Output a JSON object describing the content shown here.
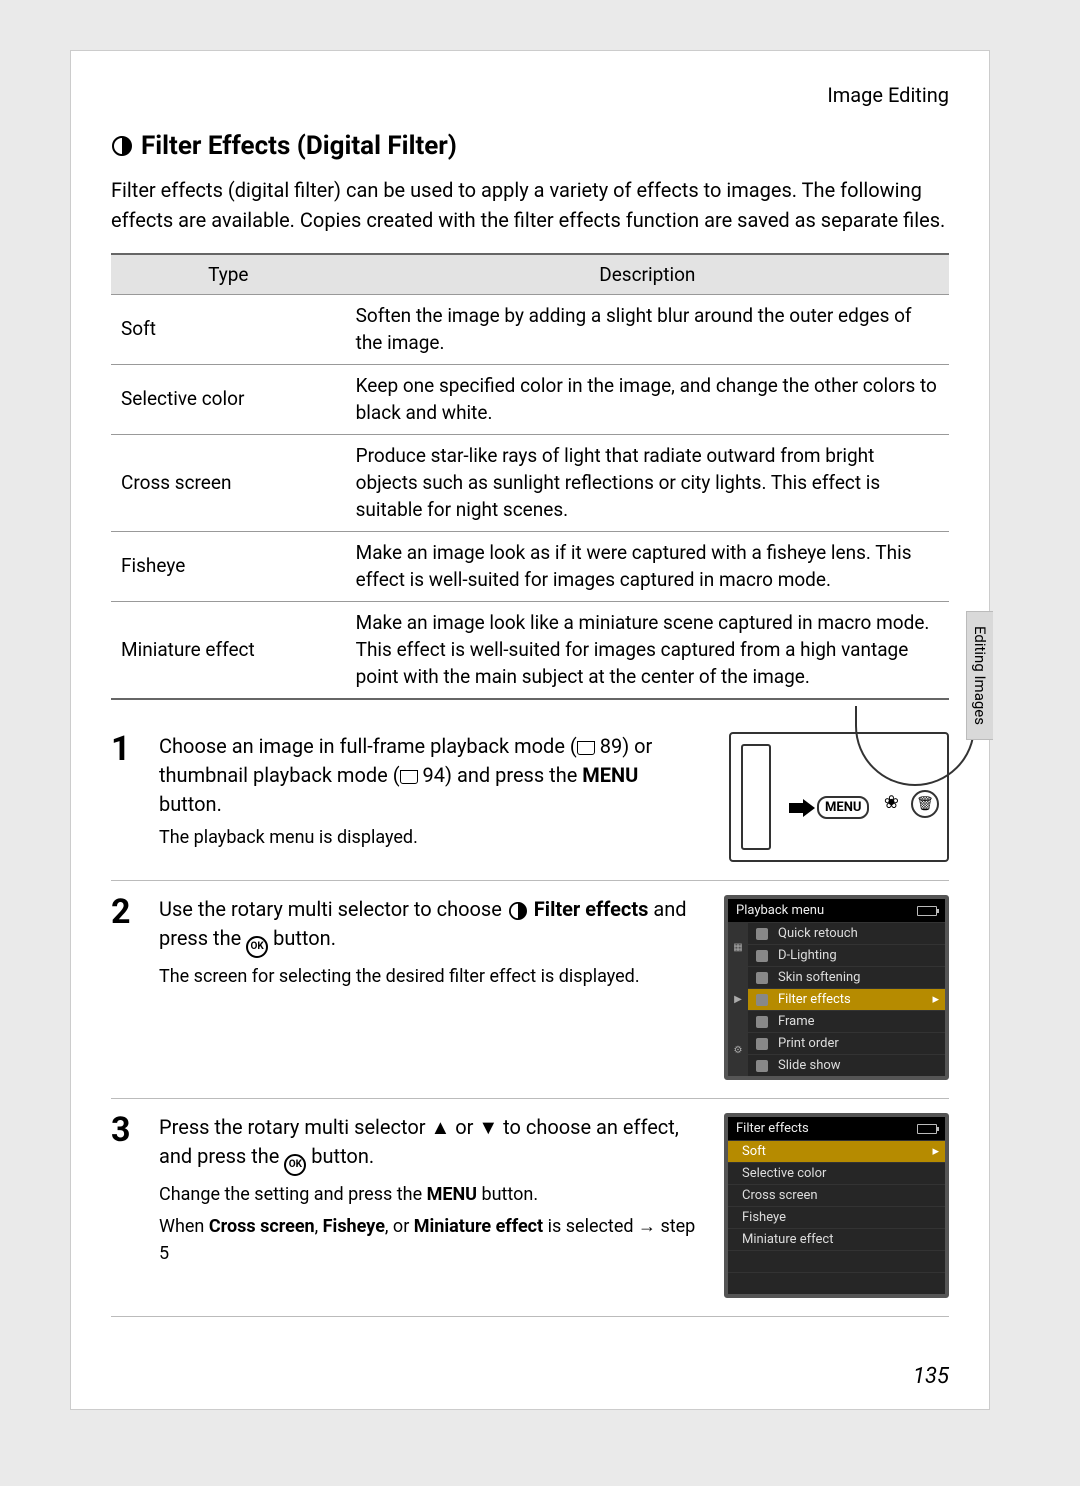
{
  "chapter": "Image Editing",
  "side_tab": "Editing Images",
  "page_number": "135",
  "section": {
    "title": "Filter Effects (Digital Filter)",
    "intro": "Filter effects (digital filter) can be used to apply a variety of effects to images. The following effects are available. Copies created with the filter effects function are saved as separate files."
  },
  "table": {
    "headers": {
      "type": "Type",
      "desc": "Description"
    },
    "rows": [
      {
        "type": "Soft",
        "desc": "Soften the image by adding a slight blur around the outer edges of the image."
      },
      {
        "type": "Selective color",
        "desc": "Keep one specified color in the image, and change the other colors to black and white."
      },
      {
        "type": "Cross screen",
        "desc": "Produce star-like rays of light that radiate outward from bright objects such as sunlight reflections or city lights. This effect is suitable for night scenes."
      },
      {
        "type": "Fisheye",
        "desc": "Make an image look as if it were captured with a fisheye lens. This effect is well-suited for images captured in macro mode."
      },
      {
        "type": "Miniature effect",
        "desc": "Make an image look like a miniature scene captured in macro mode. This effect is well-suited for images captured from a high vantage point with the main subject at the center of the image."
      }
    ]
  },
  "steps": {
    "s1": {
      "num": "1",
      "text_before": "Choose an image in full-frame playback mode (",
      "ref1": "89",
      "text_mid": ") or thumbnail playback mode (",
      "ref2": "94",
      "text_after": ") and press the ",
      "menu_word": "MENU",
      "text_end": " button.",
      "sub": "The playback menu is displayed.",
      "cam_menu_label": "MENU"
    },
    "s2": {
      "num": "2",
      "text_a": "Use the rotary multi selector to choose ",
      "bold": "Filter effects",
      "text_b": " and press the ",
      "ok": "OK",
      "text_c": " button.",
      "sub": "The screen for selecting the desired filter effect is displayed.",
      "lcd_title": "Playback menu",
      "menu_items": [
        "Quick retouch",
        "D-Lighting",
        "Skin softening",
        "Filter effects",
        "Frame",
        "Print order",
        "Slide show"
      ],
      "selected_index": 3
    },
    "s3": {
      "num": "3",
      "text_a": "Press the rotary multi selector ▲ or ▼ to choose an effect, and press the ",
      "ok": "OK",
      "text_b": " button.",
      "sub1_a": "Change the setting and press the ",
      "sub1_menu": "MENU",
      "sub1_b": " button.",
      "sub2_a": "When ",
      "sub2_b1": "Cross screen",
      "sub2_b2": "Fisheye",
      "sub2_b3": "Miniature effect",
      "sub2_c": " is selected → step 5",
      "lcd_title": "Filter effects",
      "menu_items": [
        "Soft",
        "Selective color",
        "Cross screen",
        "Fisheye",
        "Miniature effect"
      ],
      "selected_index": 0
    }
  },
  "colors": {
    "page_bg": "#ffffff",
    "outer_bg": "#eaeaea",
    "table_header_bg": "#e3e3e3",
    "lcd_bg": "#1a1a1a",
    "lcd_row_bg": "#262626",
    "lcd_selected_bg": "#b68b00",
    "side_tab_bg": "#d9d9d9"
  }
}
